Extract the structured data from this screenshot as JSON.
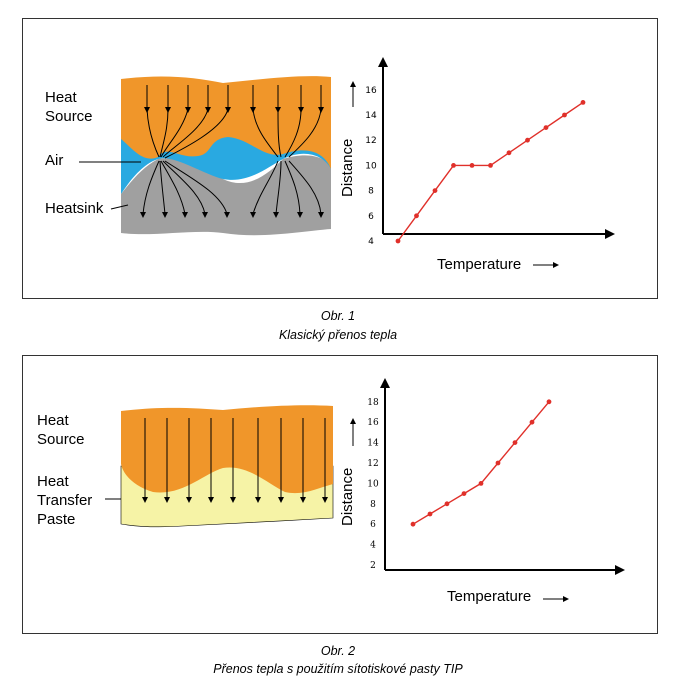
{
  "figure1": {
    "labels": {
      "heat_source_line1": "Heat",
      "heat_source_line2": "Source",
      "air": "Air",
      "heatsink": "Heatsink"
    },
    "caption_number": "Obr. 1",
    "caption_text": "Klasický přenos tepla"
  },
  "figure2": {
    "labels": {
      "heat_source_line1": "Heat",
      "heat_source_line2": "Source",
      "paste_line1": "Heat",
      "paste_line2": "Transfer",
      "paste_line3": "Paste"
    },
    "caption_number": "Obr. 2",
    "caption_text": "Přenos tepla s použitím sítotiskové pasty TIP"
  },
  "colors": {
    "heat_source": "#f0962a",
    "air": "#29a9e1",
    "heatsink": "#a0a0a0",
    "paste": "#f6f3a6",
    "series": "#e0302a"
  },
  "chart_data": [
    {
      "type": "line",
      "xlabel": "Temperature",
      "ylabel": "Distance",
      "ylim": [
        2,
        16
      ],
      "yticks": [
        4,
        6,
        8,
        10,
        12,
        14,
        16
      ],
      "series": [
        {
          "values": [
            4,
            6,
            8,
            10,
            10,
            10,
            11,
            12,
            13,
            14,
            15
          ]
        }
      ]
    },
    {
      "type": "line",
      "xlabel": "Temperature",
      "ylabel": "Distance",
      "ylim": [
        2,
        18
      ],
      "yticks": [
        2,
        4,
        6,
        8,
        10,
        12,
        14,
        16,
        18
      ],
      "series": [
        {
          "values": [
            6,
            7,
            8,
            9,
            10,
            12,
            14,
            16,
            18
          ]
        }
      ]
    }
  ]
}
